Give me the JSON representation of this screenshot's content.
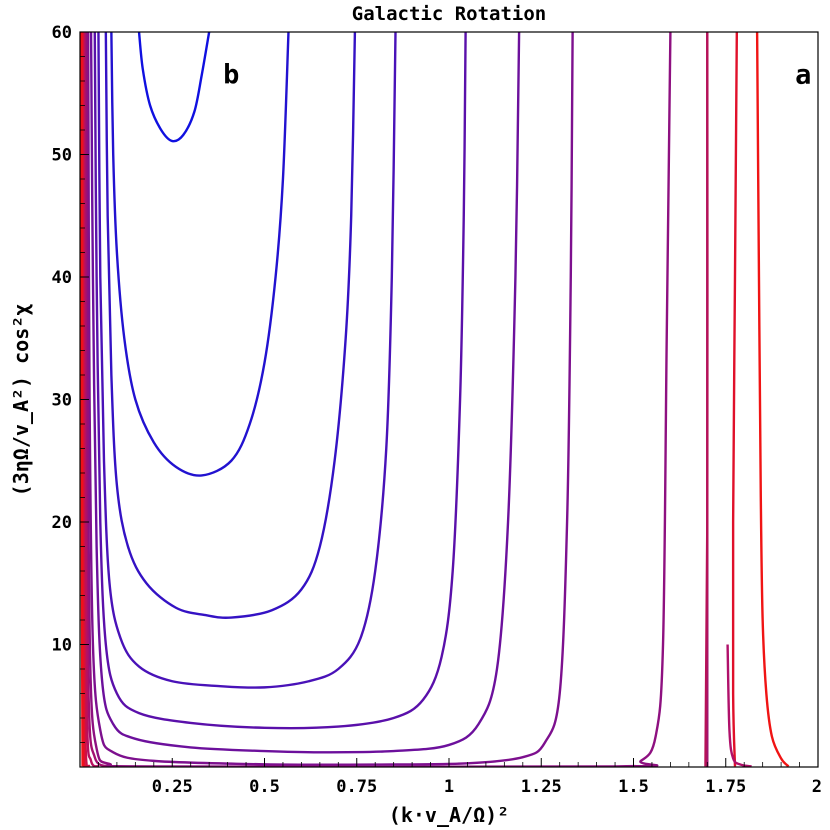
{
  "chart_data": {
    "type": "line",
    "title": "Galactic Rotation",
    "xlabel": "(k·v_A/Ω)²",
    "ylabel": "(3ηΩ/v_A²) cos²χ",
    "xlim": [
      0,
      2
    ],
    "ylim": [
      0,
      60
    ],
    "xticks": [
      "0.25",
      "0.5",
      "0.75",
      "1",
      "1.25",
      "1.5",
      "1.75",
      "2"
    ],
    "yticks": [
      "10",
      "20",
      "30",
      "40",
      "50",
      "60"
    ],
    "grid": false,
    "legend": "none",
    "annotations": [
      {
        "text": "b",
        "x": 0.41,
        "y": 55.8
      },
      {
        "text": "a",
        "x": 1.96,
        "y": 55.8
      }
    ],
    "series": [
      {
        "color": "#1010e0",
        "points": [
          [
            0.16,
            60
          ],
          [
            0.17,
            57
          ],
          [
            0.19,
            54
          ],
          [
            0.22,
            52
          ],
          [
            0.25,
            51.1
          ],
          [
            0.28,
            51.6
          ],
          [
            0.31,
            53.5
          ],
          [
            0.33,
            56.5
          ],
          [
            0.35,
            60
          ]
        ]
      },
      {
        "color": "#2212d0",
        "points": [
          [
            0.085,
            60
          ],
          [
            0.09,
            50
          ],
          [
            0.1,
            42
          ],
          [
            0.12,
            35
          ],
          [
            0.15,
            30
          ],
          [
            0.2,
            26.5
          ],
          [
            0.26,
            24.5
          ],
          [
            0.33,
            23.8
          ],
          [
            0.41,
            25
          ],
          [
            0.46,
            28
          ],
          [
            0.5,
            33
          ],
          [
            0.53,
            40
          ],
          [
            0.55,
            48
          ],
          [
            0.565,
            60
          ]
        ]
      },
      {
        "color": "#3412c4",
        "points": [
          [
            0.07,
            60
          ],
          [
            0.075,
            45
          ],
          [
            0.085,
            32
          ],
          [
            0.1,
            23
          ],
          [
            0.13,
            18
          ],
          [
            0.18,
            15
          ],
          [
            0.26,
            13
          ],
          [
            0.34,
            12.4
          ],
          [
            0.41,
            12.2
          ],
          [
            0.52,
            12.8
          ],
          [
            0.6,
            14.5
          ],
          [
            0.65,
            18
          ],
          [
            0.69,
            25
          ],
          [
            0.72,
            35
          ],
          [
            0.735,
            45
          ],
          [
            0.745,
            60
          ]
        ]
      },
      {
        "color": "#4912b8",
        "points": [
          [
            0.05,
            60
          ],
          [
            0.055,
            40
          ],
          [
            0.065,
            25
          ],
          [
            0.08,
            15
          ],
          [
            0.11,
            10.5
          ],
          [
            0.16,
            8.2
          ],
          [
            0.25,
            7
          ],
          [
            0.38,
            6.6
          ],
          [
            0.5,
            6.5
          ],
          [
            0.62,
            7
          ],
          [
            0.7,
            8
          ],
          [
            0.76,
            10.5
          ],
          [
            0.8,
            16
          ],
          [
            0.83,
            26
          ],
          [
            0.845,
            40
          ],
          [
            0.855,
            60
          ]
        ]
      },
      {
        "color": "#5a10aa",
        "points": [
          [
            0.04,
            60
          ],
          [
            0.045,
            40
          ],
          [
            0.055,
            20
          ],
          [
            0.07,
            10
          ],
          [
            0.1,
            6
          ],
          [
            0.16,
            4.4
          ],
          [
            0.3,
            3.6
          ],
          [
            0.5,
            3.2
          ],
          [
            0.7,
            3.3
          ],
          [
            0.85,
            4
          ],
          [
            0.93,
            5.5
          ],
          [
            0.98,
            9
          ],
          [
            1.01,
            16
          ],
          [
            1.03,
            30
          ],
          [
            1.04,
            45
          ],
          [
            1.045,
            60
          ]
        ]
      },
      {
        "color": "#6c109c",
        "points": [
          [
            0.03,
            60
          ],
          [
            0.035,
            40
          ],
          [
            0.045,
            18
          ],
          [
            0.06,
            7
          ],
          [
            0.09,
            3.5
          ],
          [
            0.15,
            2.3
          ],
          [
            0.3,
            1.6
          ],
          [
            0.5,
            1.3
          ],
          [
            0.65,
            1.2
          ],
          [
            0.85,
            1.3
          ],
          [
            1.0,
            1.8
          ],
          [
            1.08,
            3.5
          ],
          [
            1.13,
            8
          ],
          [
            1.16,
            20
          ],
          [
            1.18,
            40
          ],
          [
            1.19,
            60
          ]
        ]
      },
      {
        "color": "#7d108e",
        "points": [
          [
            0.022,
            60
          ],
          [
            0.026,
            30
          ],
          [
            0.035,
            10
          ],
          [
            0.055,
            3
          ],
          [
            0.09,
            1.2
          ],
          [
            0.2,
            0.5
          ],
          [
            0.5,
            0.22
          ],
          [
            0.8,
            0.2
          ],
          [
            1.05,
            0.3
          ],
          [
            1.2,
            0.8
          ],
          [
            1.26,
            2
          ],
          [
            1.3,
            6
          ],
          [
            1.32,
            20
          ],
          [
            1.33,
            40
          ],
          [
            1.335,
            60
          ]
        ]
      },
      {
        "color": "#8e1080",
        "points": [
          [
            0.018,
            60
          ],
          [
            0.021,
            30
          ],
          [
            0.028,
            8
          ],
          [
            0.045,
            1.5
          ],
          [
            0.08,
            0.25
          ],
          [
            0.2,
            0.05
          ],
          [
            1.45,
            0.05
          ],
          [
            1.52,
            0.5
          ],
          [
            1.56,
            2.5
          ],
          [
            1.58,
            10
          ],
          [
            1.59,
            35
          ],
          [
            1.6,
            60
          ]
        ]
      },
      {
        "color": "#a21070",
        "points": [
          [
            0.014,
            60
          ],
          [
            0.017,
            25
          ],
          [
            0.024,
            5
          ],
          [
            0.04,
            0.8
          ],
          [
            0.07,
            0.05
          ]
        ]
      },
      {
        "color": "#b81060",
        "points": [
          [
            0.011,
            60
          ],
          [
            0.013,
            25
          ],
          [
            0.019,
            4
          ],
          [
            0.03,
            0.5
          ],
          [
            0.05,
            0.05
          ]
        ]
      },
      {
        "color": "#cc1048",
        "points": [
          [
            0.008,
            60
          ],
          [
            0.01,
            20
          ],
          [
            0.015,
            2
          ],
          [
            0.025,
            0.05
          ]
        ]
      },
      {
        "color": "#e01030",
        "points": [
          [
            0.006,
            60
          ],
          [
            0.007,
            20
          ],
          [
            0.011,
            1
          ],
          [
            0.017,
            0.05
          ]
        ]
      },
      {
        "color": "#f01018",
        "points": [
          [
            0.004,
            60
          ],
          [
            0.005,
            15
          ],
          [
            0.007,
            0.05
          ]
        ]
      },
      {
        "color": "#a01470",
        "points": [
          [
            1.7,
            0
          ],
          [
            1.7,
            60
          ]
        ]
      },
      {
        "color": "#e0102a",
        "points": [
          [
            1.78,
            60
          ],
          [
            1.775,
            40
          ],
          [
            1.77,
            20
          ],
          [
            1.77,
            6
          ],
          [
            1.775,
            0.05
          ]
        ]
      },
      {
        "color": "#b61258",
        "points": [
          [
            1.695,
            0.05
          ],
          [
            1.7,
            20
          ],
          [
            1.7,
            60
          ]
        ]
      },
      {
        "color": "#f01414",
        "points": [
          [
            1.835,
            60
          ],
          [
            1.84,
            40
          ],
          [
            1.845,
            22
          ],
          [
            1.85,
            12
          ],
          [
            1.86,
            6
          ],
          [
            1.875,
            2.5
          ],
          [
            1.9,
            0.7
          ],
          [
            1.92,
            0.05
          ]
        ]
      },
      {
        "color": "#b0106a",
        "points": [
          [
            1.82,
            0.05
          ],
          [
            1.79,
            0.2
          ],
          [
            1.77,
            0.7
          ],
          [
            1.76,
            3
          ],
          [
            1.755,
            10
          ]
        ]
      }
    ]
  }
}
